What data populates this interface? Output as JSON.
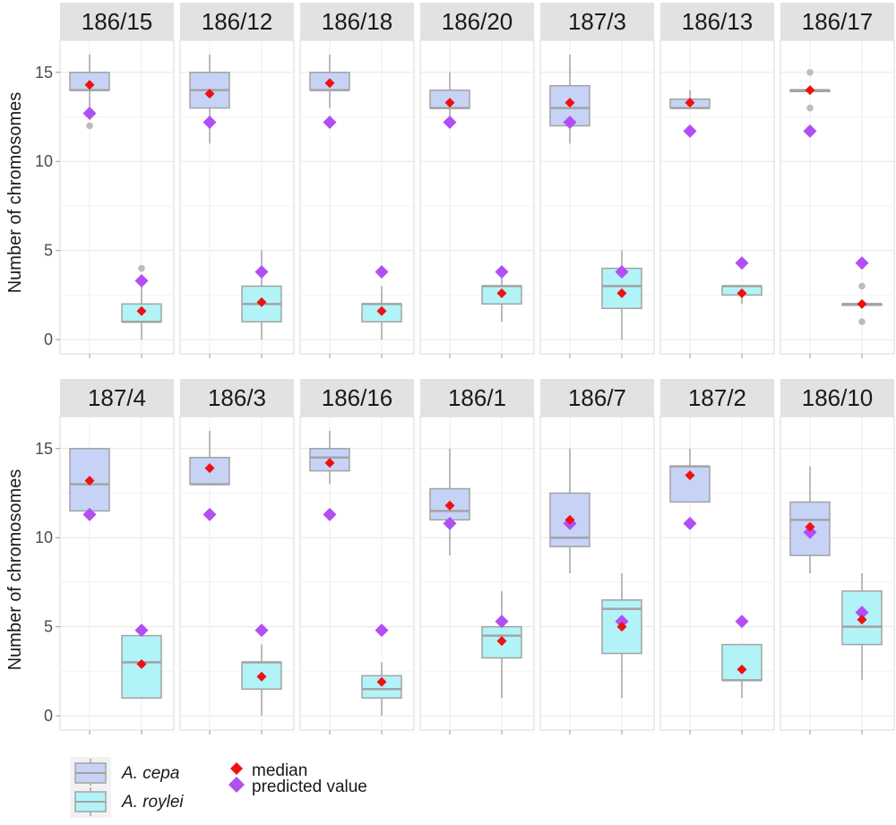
{
  "chart_data": {
    "type": "boxplot",
    "ylabel": "Number of chromosomes",
    "ylim": [
      -0.8,
      16.8
    ],
    "yticks": [
      "0",
      "5",
      "10",
      "15"
    ],
    "grid": true,
    "legend_position": "bottom-left",
    "colors": {
      "A. cepa": "#c6d3f7",
      "A. roylei": "#b2f3f8",
      "box_border": "#a3a3a3",
      "median_marker": "#ee1111",
      "predicted_marker": "#b14ff3",
      "strip_bg": "#e2e2e2",
      "outlier": "#bdbdbd"
    },
    "species": [
      "A. cepa",
      "A. roylei"
    ],
    "legend": {
      "species": [
        "A. cepa",
        "A. roylei"
      ],
      "markers": [
        "median",
        "predicted value"
      ]
    },
    "panels": [
      {
        "title": "186/15",
        "cepa": {
          "q1": 14,
          "med": 14,
          "q3": 15,
          "wmin": 13,
          "wmax": 16,
          "mean": 14.3,
          "pred": 12.7,
          "outliers": [
            12
          ]
        },
        "roylei": {
          "q1": 1,
          "med": 1,
          "q3": 2,
          "wmin": 0,
          "wmax": 3,
          "mean": 1.6,
          "pred": 3.3,
          "outliers": [
            4
          ]
        }
      },
      {
        "title": "186/12",
        "cepa": {
          "q1": 13,
          "med": 14,
          "q3": 15,
          "wmin": 11,
          "wmax": 16,
          "mean": 13.8,
          "pred": 12.2,
          "outliers": []
        },
        "roylei": {
          "q1": 1,
          "med": 2,
          "q3": 3,
          "wmin": 0,
          "wmax": 5,
          "mean": 2.1,
          "pred": 3.8,
          "outliers": []
        }
      },
      {
        "title": "186/18",
        "cepa": {
          "q1": 14,
          "med": 14,
          "q3": 15,
          "wmin": 13,
          "wmax": 16,
          "mean": 14.4,
          "pred": 12.2,
          "outliers": []
        },
        "roylei": {
          "q1": 1,
          "med": 2,
          "q3": 2,
          "wmin": 0,
          "wmax": 3,
          "mean": 1.6,
          "pred": 3.8,
          "outliers": []
        }
      },
      {
        "title": "186/20",
        "cepa": {
          "q1": 13,
          "med": 13,
          "q3": 14,
          "wmin": 12,
          "wmax": 15,
          "mean": 13.3,
          "pred": 12.2,
          "outliers": []
        },
        "roylei": {
          "q1": 2,
          "med": 3,
          "q3": 3,
          "wmin": 1,
          "wmax": 4,
          "mean": 2.6,
          "pred": 3.8,
          "outliers": []
        }
      },
      {
        "title": "187/3",
        "cepa": {
          "q1": 12,
          "med": 13,
          "q3": 14.25,
          "wmin": 11,
          "wmax": 16,
          "mean": 13.3,
          "pred": 12.2,
          "outliers": []
        },
        "roylei": {
          "q1": 1.75,
          "med": 3,
          "q3": 4,
          "wmin": 0,
          "wmax": 5,
          "mean": 2.6,
          "pred": 3.8,
          "outliers": []
        }
      },
      {
        "title": "186/13",
        "cepa": {
          "q1": 13,
          "med": 13,
          "q3": 13.5,
          "wmin": 13,
          "wmax": 14,
          "mean": 13.3,
          "pred": 11.7,
          "outliers": []
        },
        "roylei": {
          "q1": 2.5,
          "med": 3,
          "q3": 3,
          "wmin": 2,
          "wmax": 3,
          "mean": 2.6,
          "pred": 4.3,
          "outliers": []
        }
      },
      {
        "title": "186/17",
        "cepa": {
          "q1": 14,
          "med": 14,
          "q3": 14,
          "wmin": 14,
          "wmax": 14,
          "mean": 14.0,
          "pred": 11.7,
          "outliers": [
            15,
            13
          ]
        },
        "roylei": {
          "q1": 2,
          "med": 2,
          "q3": 2,
          "wmin": 2,
          "wmax": 2,
          "mean": 2.0,
          "pred": 4.3,
          "outliers": [
            3,
            1
          ]
        }
      },
      {
        "title": "187/4",
        "cepa": {
          "q1": 11.5,
          "med": 13,
          "q3": 15,
          "wmin": 11.5,
          "wmax": 15,
          "mean": 13.2,
          "pred": 11.3,
          "outliers": []
        },
        "roylei": {
          "q1": 1,
          "med": 3,
          "q3": 4.5,
          "wmin": 1,
          "wmax": 4.5,
          "mean": 2.9,
          "pred": 4.8,
          "outliers": []
        }
      },
      {
        "title": "186/3",
        "cepa": {
          "q1": 13,
          "med": 13,
          "q3": 14.5,
          "wmin": 13,
          "wmax": 16,
          "mean": 13.9,
          "pred": 11.3,
          "outliers": []
        },
        "roylei": {
          "q1": 1.5,
          "med": 3,
          "q3": 3,
          "wmin": 0,
          "wmax": 4,
          "mean": 2.2,
          "pred": 4.8,
          "outliers": []
        }
      },
      {
        "title": "186/16",
        "cepa": {
          "q1": 13.75,
          "med": 14.5,
          "q3": 15,
          "wmin": 13,
          "wmax": 16,
          "mean": 14.2,
          "pred": 11.3,
          "outliers": []
        },
        "roylei": {
          "q1": 1,
          "med": 1.5,
          "q3": 2.25,
          "wmin": 0,
          "wmax": 3,
          "mean": 1.9,
          "pred": 4.8,
          "outliers": []
        }
      },
      {
        "title": "186/1",
        "cepa": {
          "q1": 11,
          "med": 11.5,
          "q3": 12.75,
          "wmin": 9,
          "wmax": 15,
          "mean": 11.8,
          "pred": 10.8,
          "outliers": []
        },
        "roylei": {
          "q1": 3.25,
          "med": 4.5,
          "q3": 5,
          "wmin": 1,
          "wmax": 7,
          "mean": 4.2,
          "pred": 5.3,
          "outliers": []
        }
      },
      {
        "title": "186/7",
        "cepa": {
          "q1": 9.5,
          "med": 10,
          "q3": 12.5,
          "wmin": 8,
          "wmax": 15,
          "mean": 11.0,
          "pred": 10.8,
          "outliers": []
        },
        "roylei": {
          "q1": 3.5,
          "med": 6,
          "q3": 6.5,
          "wmin": 1,
          "wmax": 8,
          "mean": 5.0,
          "pred": 5.3,
          "outliers": []
        }
      },
      {
        "title": "187/2",
        "cepa": {
          "q1": 12,
          "med": 14,
          "q3": 14,
          "wmin": 12,
          "wmax": 15,
          "mean": 13.5,
          "pred": 10.8,
          "outliers": []
        },
        "roylei": {
          "q1": 2,
          "med": 2,
          "q3": 4,
          "wmin": 1,
          "wmax": 4,
          "mean": 2.6,
          "pred": 5.3,
          "outliers": []
        }
      },
      {
        "title": "186/10",
        "cepa": {
          "q1": 9,
          "med": 11,
          "q3": 12,
          "wmin": 8,
          "wmax": 14,
          "mean": 10.6,
          "pred": 10.3,
          "outliers": []
        },
        "roylei": {
          "q1": 4,
          "med": 5,
          "q3": 7,
          "wmin": 2,
          "wmax": 8,
          "mean": 5.4,
          "pred": 5.8,
          "outliers": []
        }
      }
    ]
  }
}
